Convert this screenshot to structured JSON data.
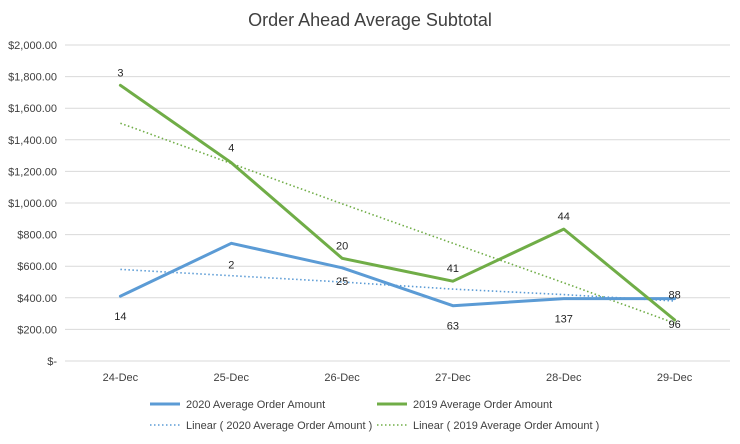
{
  "chart_data": {
    "type": "line",
    "title": "Order Ahead Average Subtotal",
    "categories": [
      "24-Dec",
      "25-Dec",
      "26-Dec",
      "27-Dec",
      "28-Dec",
      "29-Dec"
    ],
    "y_ticks": [
      "$-",
      "$200.00",
      "$400.00",
      "$600.00",
      "$800.00",
      "$1,000.00",
      "$1,200.00",
      "$1,400.00",
      "$1,600.00",
      "$1,800.00",
      "$2,000.00"
    ],
    "ylim": [
      0,
      2000
    ],
    "grid": true,
    "legend_position": "bottom",
    "series": [
      {
        "name": "2020 Average Order Amount",
        "color": "#5B9BD5",
        "style": "solid",
        "values": [
          410,
          745,
          590,
          350,
          395,
          395
        ],
        "labels": [
          "14",
          "2",
          "25",
          "63",
          "137",
          "88"
        ]
      },
      {
        "name": "2019 Average Order Amount",
        "color": "#70AD47",
        "style": "solid",
        "values": [
          1745,
          1255,
          650,
          505,
          835,
          260
        ],
        "labels": [
          "3",
          "4",
          "20",
          "41",
          "44",
          "96"
        ]
      },
      {
        "name": "Linear ( 2020 Average Order Amount )",
        "color": "#5B9BD5",
        "style": "dotted",
        "trend_of": 0,
        "values": [
          580,
          540,
          500,
          455,
          420,
          380
        ]
      },
      {
        "name": "Linear ( 2019 Average Order Amount )",
        "color": "#70AD47",
        "style": "dotted",
        "trend_of": 1,
        "values": [
          1505,
          1250,
          995,
          745,
          495,
          240
        ]
      }
    ]
  }
}
